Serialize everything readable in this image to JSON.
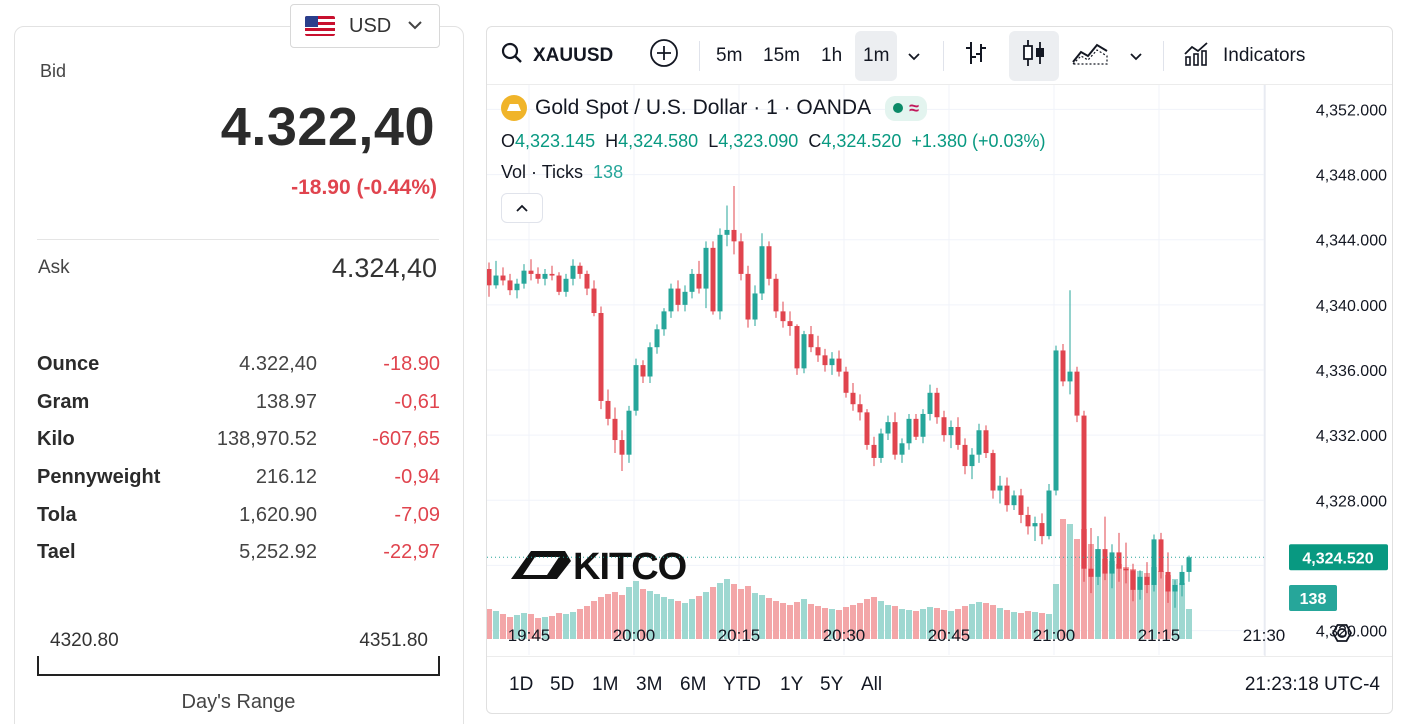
{
  "currency": {
    "code": "USD",
    "flag_icon": "us-flag-icon"
  },
  "bid": {
    "label": "Bid",
    "value": "4.322,40",
    "change": "-18.90 (-0.44%)"
  },
  "ask": {
    "label": "Ask",
    "value": "4.324,40"
  },
  "units": [
    {
      "name": "Ounce",
      "price": "4.322,40",
      "change": "-18.90"
    },
    {
      "name": "Gram",
      "price": "138.97",
      "change": "-0,61"
    },
    {
      "name": "Kilo",
      "price": "138,970.52",
      "change": "-607,65"
    },
    {
      "name": "Pennyweight",
      "price": "216.12",
      "change": "-0,94"
    },
    {
      "name": "Tola",
      "price": "1,620.90",
      "change": "-7,09"
    },
    {
      "name": "Tael",
      "price": "5,252.92",
      "change": "-22,97"
    }
  ],
  "day_range": {
    "low": "4320.80",
    "high": "4351.80",
    "label": "Day's Range"
  },
  "toolbar": {
    "symbol": "XAUUSD",
    "intervals": [
      "5m",
      "15m",
      "1h",
      "1m"
    ],
    "selected_interval": "1m",
    "indicators_label": "Indicators"
  },
  "legend": {
    "title": "Gold Spot / U.S. Dollar · 1 · OANDA",
    "o_label": "O",
    "o": "4,323.145",
    "h_label": "H",
    "h": "4,324.580",
    "l_label": "L",
    "l": "4,323.090",
    "c_label": "C",
    "c": "4,324.520",
    "change": "+1.380 (+0.03%)",
    "vol_label": "Vol · Ticks",
    "vol": "138",
    "wave_symbol": "≈"
  },
  "watermark": "KITCO",
  "price_axis": [
    "4,352.000",
    "4,348.000",
    "4,344.000",
    "4,340.000",
    "4,336.000",
    "4,332.000",
    "4,328.000",
    "4,320.000"
  ],
  "last_price_tag": "4,324.520",
  "volume_tag": "138",
  "time_axis": [
    "19:45",
    "20:00",
    "20:15",
    "20:30",
    "20:45",
    "21:00",
    "21:15",
    "21:30"
  ],
  "ranges": [
    "1D",
    "5D",
    "1M",
    "3M",
    "6M",
    "YTD",
    "1Y",
    "5Y",
    "All"
  ],
  "clock": "21:23:18 UTC-4",
  "colors": {
    "up": "#26a69a",
    "down": "#e0444e",
    "up_vol": "#9ed8d1",
    "down_vol": "#f3a6a8"
  },
  "chart_data": {
    "type": "candlestick",
    "symbol": "XAUUSD",
    "interval": "1m",
    "ylim": [
      4318.5,
      4353.5
    ],
    "x_start": "19:40",
    "candles": [
      [
        4342.2,
        4342.6,
        4340.5,
        4341.2,
        30
      ],
      [
        4341.2,
        4342.7,
        4341.0,
        4341.8,
        28
      ],
      [
        4341.8,
        4342.3,
        4341.2,
        4341.5,
        25
      ],
      [
        4341.5,
        4341.9,
        4340.6,
        4340.9,
        22
      ],
      [
        4340.9,
        4341.6,
        4340.4,
        4341.3,
        24
      ],
      [
        4341.3,
        4342.5,
        4341.0,
        4342.1,
        26
      ],
      [
        4342.1,
        4342.8,
        4341.5,
        4341.9,
        25
      ],
      [
        4341.9,
        4342.3,
        4341.3,
        4341.6,
        21
      ],
      [
        4341.6,
        4342.2,
        4341.2,
        4341.9,
        22
      ],
      [
        4341.9,
        4342.4,
        4341.5,
        4341.8,
        23
      ],
      [
        4341.8,
        4342.0,
        4340.6,
        4340.8,
        26
      ],
      [
        4340.8,
        4341.9,
        4340.5,
        4341.6,
        25
      ],
      [
        4341.6,
        4342.8,
        4341.2,
        4342.4,
        27
      ],
      [
        4342.4,
        4342.6,
        4341.6,
        4341.9,
        30
      ],
      [
        4341.9,
        4342.1,
        4340.6,
        4341.0,
        33
      ],
      [
        4341.0,
        4341.5,
        4339.3,
        4339.5,
        38
      ],
      [
        4339.5,
        4339.9,
        4333.6,
        4334.1,
        42
      ],
      [
        4334.1,
        4334.8,
        4332.6,
        4333.0,
        45
      ],
      [
        4333.0,
        4333.7,
        4330.9,
        4331.7,
        47
      ],
      [
        4331.7,
        4332.3,
        4329.8,
        4330.8,
        44
      ],
      [
        4330.8,
        4333.8,
        4330.3,
        4333.5,
        52
      ],
      [
        4333.5,
        4336.7,
        4333.2,
        4336.3,
        58
      ],
      [
        4336.3,
        4336.6,
        4335.2,
        4335.6,
        50
      ],
      [
        4335.6,
        4337.7,
        4335.2,
        4337.4,
        48
      ],
      [
        4337.4,
        4338.8,
        4337.0,
        4338.5,
        45
      ],
      [
        4338.5,
        4339.8,
        4338.1,
        4339.6,
        42
      ],
      [
        4339.6,
        4341.3,
        4339.2,
        4341.0,
        40
      ],
      [
        4341.0,
        4341.5,
        4339.6,
        4340.0,
        38
      ],
      [
        4340.0,
        4341.2,
        4339.6,
        4340.8,
        36
      ],
      [
        4340.8,
        4342.2,
        4340.4,
        4341.9,
        40
      ],
      [
        4341.9,
        4342.7,
        4340.7,
        4341.0,
        43
      ],
      [
        4341.0,
        4343.9,
        4339.8,
        4343.5,
        47
      ],
      [
        4343.5,
        4343.9,
        4339.4,
        4339.6,
        52
      ],
      [
        4339.6,
        4344.7,
        4339.1,
        4344.3,
        56
      ],
      [
        4344.3,
        4346.1,
        4343.6,
        4344.6,
        60
      ],
      [
        4344.6,
        4347.3,
        4343.1,
        4343.9,
        55
      ],
      [
        4343.9,
        4344.4,
        4341.5,
        4341.9,
        50
      ],
      [
        4341.9,
        4342.4,
        4338.6,
        4339.1,
        53
      ],
      [
        4339.1,
        4341.2,
        4338.7,
        4340.7,
        46
      ],
      [
        4340.7,
        4344.4,
        4340.3,
        4343.6,
        44
      ],
      [
        4343.6,
        4343.9,
        4341.2,
        4341.6,
        41
      ],
      [
        4341.6,
        4341.9,
        4339.2,
        4339.6,
        38
      ],
      [
        4339.6,
        4340.2,
        4338.6,
        4339.0,
        36
      ],
      [
        4339.0,
        4339.6,
        4338.1,
        4338.7,
        34
      ],
      [
        4338.7,
        4338.8,
        4335.7,
        4336.1,
        37
      ],
      [
        4336.1,
        4338.4,
        4335.8,
        4338.2,
        40
      ],
      [
        4338.2,
        4338.7,
        4337.1,
        4337.4,
        35
      ],
      [
        4337.4,
        4338.1,
        4336.5,
        4336.9,
        33
      ],
      [
        4336.9,
        4337.3,
        4335.9,
        4336.3,
        31
      ],
      [
        4336.3,
        4337.1,
        4335.7,
        4336.7,
        30
      ],
      [
        4336.7,
        4337.2,
        4335.6,
        4335.9,
        29
      ],
      [
        4335.9,
        4336.2,
        4334.3,
        4334.6,
        32
      ],
      [
        4334.6,
        4335.2,
        4333.5,
        4333.9,
        34
      ],
      [
        4333.9,
        4334.5,
        4332.9,
        4333.4,
        36
      ],
      [
        4333.4,
        4333.6,
        4331.1,
        4331.4,
        40
      ],
      [
        4331.4,
        4331.9,
        4330.1,
        4330.6,
        42
      ],
      [
        4330.6,
        4332.4,
        4330.3,
        4332.1,
        38
      ],
      [
        4332.1,
        4333.2,
        4331.7,
        4332.8,
        34
      ],
      [
        4332.8,
        4333.4,
        4330.5,
        4330.8,
        33
      ],
      [
        4330.8,
        4331.8,
        4330.3,
        4331.5,
        30
      ],
      [
        4331.5,
        4333.3,
        4331.1,
        4333.0,
        29
      ],
      [
        4333.0,
        4333.3,
        4331.7,
        4331.9,
        28
      ],
      [
        4331.9,
        4333.6,
        4331.5,
        4333.3,
        30
      ],
      [
        4333.3,
        4335.1,
        4332.9,
        4334.6,
        32
      ],
      [
        4334.6,
        4334.9,
        4332.7,
        4333.1,
        31
      ],
      [
        4333.1,
        4333.5,
        4331.6,
        4332.0,
        29
      ],
      [
        4332.0,
        4332.9,
        4331.2,
        4332.5,
        28
      ],
      [
        4332.5,
        4333.1,
        4331.1,
        4331.4,
        30
      ],
      [
        4331.4,
        4331.8,
        4329.6,
        4330.1,
        33
      ],
      [
        4330.1,
        4331.2,
        4329.3,
        4330.8,
        35
      ],
      [
        4330.8,
        4332.7,
        4330.3,
        4332.3,
        37
      ],
      [
        4332.3,
        4332.6,
        4330.6,
        4330.9,
        36
      ],
      [
        4330.9,
        4331.1,
        4328.1,
        4328.6,
        34
      ],
      [
        4328.6,
        4329.5,
        4327.8,
        4328.9,
        31
      ],
      [
        4328.9,
        4329.4,
        4327.3,
        4327.7,
        29
      ],
      [
        4327.7,
        4328.6,
        4327.4,
        4328.3,
        27
      ],
      [
        4328.3,
        4328.7,
        4326.6,
        4327.1,
        26
      ],
      [
        4327.1,
        4327.6,
        4325.9,
        4326.4,
        28
      ],
      [
        4326.4,
        4327.0,
        4325.5,
        4326.6,
        27
      ],
      [
        4326.6,
        4327.2,
        4325.3,
        4325.8,
        26
      ],
      [
        4325.8,
        4329.0,
        4325.6,
        4328.6,
        25
      ],
      [
        4328.6,
        4337.5,
        4328.3,
        4337.2,
        55
      ],
      [
        4337.2,
        4337.6,
        4335.0,
        4335.3,
        120
      ],
      [
        4335.3,
        4340.9,
        4334.5,
        4335.9,
        115
      ],
      [
        4335.9,
        4336.2,
        4332.8,
        4333.2,
        100
      ],
      [
        4333.2,
        4333.5,
        4323.0,
        4323.8,
        110
      ],
      [
        4323.8,
        4326.3,
        4322.3,
        4323.3,
        95
      ],
      [
        4323.3,
        4325.8,
        4322.8,
        4325.0,
        90
      ],
      [
        4325.0,
        4327.0,
        4323.1,
        4323.5,
        80
      ],
      [
        4323.5,
        4325.3,
        4322.6,
        4324.8,
        78
      ],
      [
        4324.8,
        4326.0,
        4323.0,
        4323.8,
        75
      ],
      [
        4323.8,
        4325.4,
        4322.9,
        4323.7,
        72
      ],
      [
        4323.7,
        4324.1,
        4321.8,
        4322.5,
        70
      ],
      [
        4322.5,
        4323.7,
        4321.9,
        4323.3,
        68
      ],
      [
        4323.3,
        4324.2,
        4322.3,
        4322.8,
        66
      ],
      [
        4322.8,
        4325.9,
        4322.4,
        4325.6,
        72
      ],
      [
        4325.6,
        4326.0,
        4323.2,
        4323.6,
        68
      ],
      [
        4323.6,
        4324.8,
        4321.7,
        4322.4,
        64
      ],
      [
        4322.4,
        4323.1,
        4321.4,
        4322.8,
        60
      ],
      [
        4322.8,
        4324.0,
        4322.1,
        4323.6,
        56
      ],
      [
        4323.6,
        4324.6,
        4323.0,
        4324.5,
        30
      ]
    ]
  }
}
